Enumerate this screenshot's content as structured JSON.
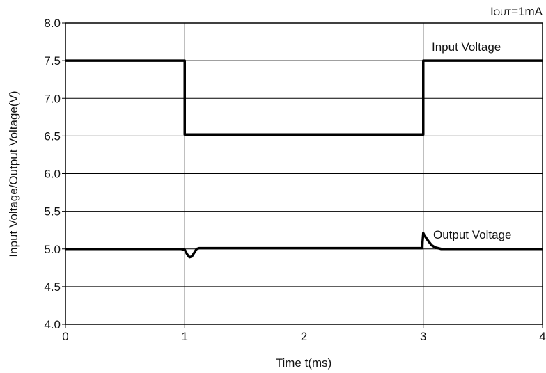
{
  "chart_data": {
    "type": "line",
    "title": "",
    "xlabel": "Time t(ms)",
    "ylabel": "Input Voltage/Output Voltage(V)",
    "xlim": [
      0,
      4
    ],
    "ylim": [
      4.0,
      8.0
    ],
    "x_ticks": [
      0,
      1,
      2,
      3,
      4
    ],
    "x_tick_labels": [
      "0",
      "1",
      "2",
      "3",
      "4"
    ],
    "y_ticks": [
      4.0,
      4.5,
      5.0,
      5.5,
      6.0,
      6.5,
      7.0,
      7.5,
      8.0
    ],
    "y_tick_labels": [
      "4.0",
      "4.5",
      "5.0",
      "5.5",
      "6.0",
      "6.5",
      "7.0",
      "7.5",
      "8.0"
    ],
    "grid": true,
    "condition": {
      "prefix": "I",
      "subscript": "OUT",
      "suffix": "=1mA"
    },
    "series": [
      {
        "name": "Input Voltage",
        "color": "#000000",
        "points": [
          [
            0,
            7.5
          ],
          [
            1.0,
            7.5
          ],
          [
            1.0,
            6.52
          ],
          [
            3.0,
            6.52
          ],
          [
            3.0,
            7.5
          ],
          [
            4.0,
            7.5
          ]
        ]
      },
      {
        "name": "Output Voltage",
        "color": "#000000",
        "points": [
          [
            0,
            5.0
          ],
          [
            0.97,
            5.0
          ],
          [
            1.0,
            4.99
          ],
          [
            1.02,
            4.93
          ],
          [
            1.04,
            4.89
          ],
          [
            1.06,
            4.9
          ],
          [
            1.08,
            4.95
          ],
          [
            1.1,
            5.0
          ],
          [
            1.12,
            5.01
          ],
          [
            2.99,
            5.01
          ],
          [
            3.0,
            5.21
          ],
          [
            3.01,
            5.18
          ],
          [
            3.04,
            5.11
          ],
          [
            3.07,
            5.05
          ],
          [
            3.1,
            5.02
          ],
          [
            3.15,
            5.0
          ],
          [
            4.0,
            5.0
          ]
        ]
      }
    ]
  }
}
